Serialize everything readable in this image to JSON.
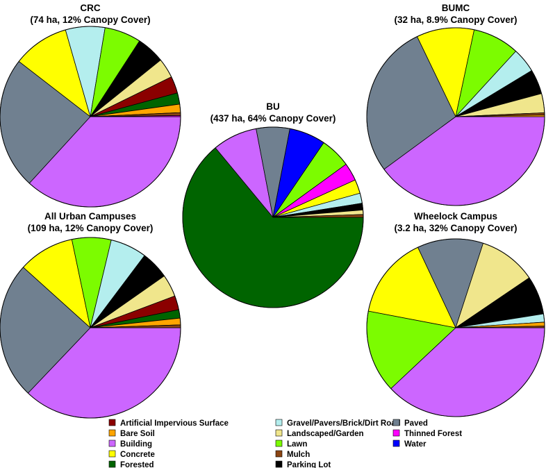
{
  "legend": [
    {
      "key": "artificial",
      "label": "Artificial Impervious Surface",
      "color": "#8B0000"
    },
    {
      "key": "bare",
      "label": "Bare Soil",
      "color": "#FFA500"
    },
    {
      "key": "building",
      "label": "Building",
      "color": "#CC66FF"
    },
    {
      "key": "concrete",
      "label": "Concrete",
      "color": "#FFFF00"
    },
    {
      "key": "forested",
      "label": "Forested",
      "color": "#006400"
    },
    {
      "key": "gravel",
      "label": "Gravel/Pavers/Brick/Dirt Road",
      "color": "#B4EEEE"
    },
    {
      "key": "landscaped",
      "label": "Landscaped/Garden",
      "color": "#F0E68C"
    },
    {
      "key": "lawn",
      "label": "Lawn",
      "color": "#7CFC00"
    },
    {
      "key": "mulch",
      "label": "Mulch",
      "color": "#8B4513"
    },
    {
      "key": "parking",
      "label": "Parking Lot",
      "color": "#000000"
    },
    {
      "key": "paved",
      "label": "Paved",
      "color": "#708090"
    },
    {
      "key": "thinned",
      "label": "Thinned Forest",
      "color": "#FF00FF"
    },
    {
      "key": "water",
      "label": "Water",
      "color": "#0000FF"
    }
  ],
  "chart_data": [
    {
      "type": "pie",
      "name": "crc",
      "title": "CRC",
      "subtitle": "(74 ha, 12% Canopy Cover)",
      "slices": [
        {
          "key": "building",
          "value": 36.5
        },
        {
          "key": "paved",
          "value": 23.5
        },
        {
          "key": "concrete",
          "value": 10.0
        },
        {
          "key": "gravel",
          "value": 7.0
        },
        {
          "key": "lawn",
          "value": 6.5
        },
        {
          "key": "parking",
          "value": 5.0
        },
        {
          "key": "landscaped",
          "value": 3.5
        },
        {
          "key": "artificial",
          "value": 3.0
        },
        {
          "key": "forested",
          "value": 2.0
        },
        {
          "key": "bare",
          "value": 1.5
        },
        {
          "key": "mulch",
          "value": 0.5
        },
        {
          "key": "thinned",
          "value": 0.2
        }
      ]
    },
    {
      "type": "pie",
      "name": "bumc",
      "title": "BUMC",
      "subtitle": "(32 ha, 8.9% Canopy Cover)",
      "slices": [
        {
          "key": "building",
          "value": 40.0
        },
        {
          "key": "paved",
          "value": 28.0
        },
        {
          "key": "concrete",
          "value": 10.5
        },
        {
          "key": "lawn",
          "value": 8.5
        },
        {
          "key": "gravel",
          "value": 4.5
        },
        {
          "key": "parking",
          "value": 4.5
        },
        {
          "key": "landscaped",
          "value": 3.5
        },
        {
          "key": "mulch",
          "value": 0.4
        },
        {
          "key": "bare",
          "value": 0.3
        }
      ]
    },
    {
      "type": "pie",
      "name": "bu",
      "title": "BU",
      "subtitle": "(437 ha, 64% Canopy Cover)",
      "slices": [
        {
          "key": "forested",
          "value": 64.0
        },
        {
          "key": "building",
          "value": 8.0
        },
        {
          "key": "paved",
          "value": 6.0
        },
        {
          "key": "water",
          "value": 6.5
        },
        {
          "key": "lawn",
          "value": 5.5
        },
        {
          "key": "thinned",
          "value": 3.2
        },
        {
          "key": "concrete",
          "value": 2.5
        },
        {
          "key": "gravel",
          "value": 1.8
        },
        {
          "key": "parking",
          "value": 1.2
        },
        {
          "key": "landscaped",
          "value": 0.8
        },
        {
          "key": "mulch",
          "value": 0.5
        }
      ]
    },
    {
      "type": "pie",
      "name": "all-urban",
      "title": "All Urban Campuses",
      "subtitle": "(109 ha, 12% Canopy Cover)",
      "slices": [
        {
          "key": "building",
          "value": 37.0
        },
        {
          "key": "paved",
          "value": 24.5
        },
        {
          "key": "concrete",
          "value": 10.0
        },
        {
          "key": "lawn",
          "value": 7.0
        },
        {
          "key": "gravel",
          "value": 6.5
        },
        {
          "key": "parking",
          "value": 5.0
        },
        {
          "key": "landscaped",
          "value": 4.0
        },
        {
          "key": "artificial",
          "value": 2.5
        },
        {
          "key": "forested",
          "value": 1.5
        },
        {
          "key": "bare",
          "value": 1.2
        },
        {
          "key": "mulch",
          "value": 0.5
        }
      ]
    },
    {
      "type": "pie",
      "name": "wheelock",
      "title": "Wheelock Campus",
      "subtitle": "(3.2 ha, 32% Canopy Cover)",
      "slices": [
        {
          "key": "building",
          "value": 38.0
        },
        {
          "key": "lawn",
          "value": 15.0
        },
        {
          "key": "concrete",
          "value": 15.0
        },
        {
          "key": "paved",
          "value": 12.0
        },
        {
          "key": "landscaped",
          "value": 10.5
        },
        {
          "key": "parking",
          "value": 7.0
        },
        {
          "key": "gravel",
          "value": 1.5
        },
        {
          "key": "bare",
          "value": 0.7
        },
        {
          "key": "mulch",
          "value": 0.3
        }
      ]
    }
  ]
}
